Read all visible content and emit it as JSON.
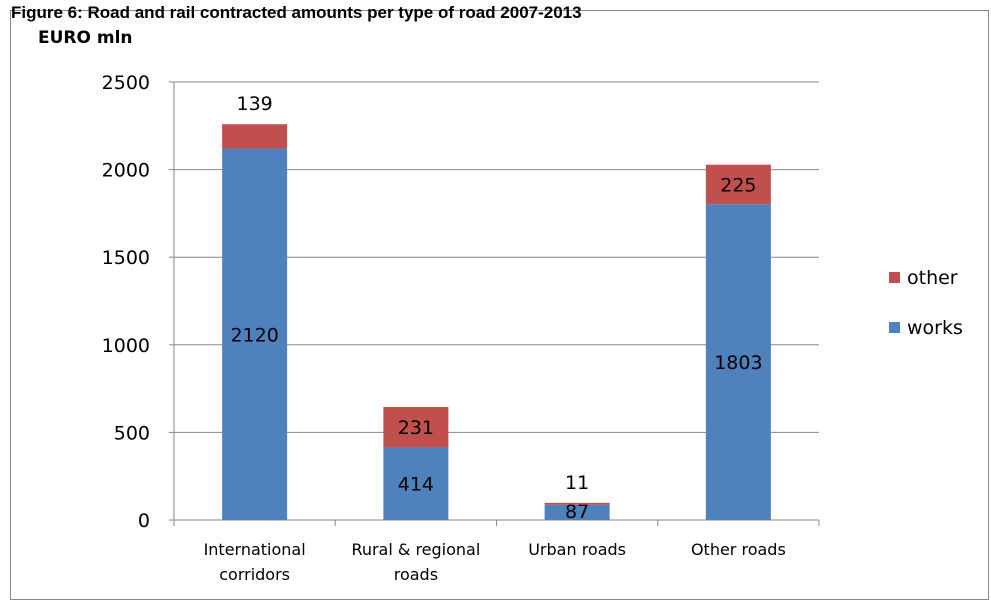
{
  "figure": {
    "caption": "Figure 6: Road and rail contracted amounts per type of road 2007-2013"
  },
  "chart_data": {
    "type": "bar",
    "stacked": true,
    "title": "",
    "ylabel": "EURO mln",
    "xlabel": "",
    "ylim": [
      0,
      2500
    ],
    "yticks": [
      0,
      500,
      1000,
      1500,
      2000,
      2500
    ],
    "grid": true,
    "legend_position": "right",
    "categories": [
      [
        "International",
        "corridors"
      ],
      [
        "Rural & regional",
        "roads"
      ],
      [
        "Urban roads"
      ],
      [
        "Other roads"
      ]
    ],
    "series": [
      {
        "name": "works",
        "color": "#4f81bd",
        "values": [
          2120,
          414,
          87,
          1803
        ]
      },
      {
        "name": "other",
        "color": "#c0504d",
        "values": [
          139,
          231,
          11,
          225
        ]
      }
    ]
  }
}
